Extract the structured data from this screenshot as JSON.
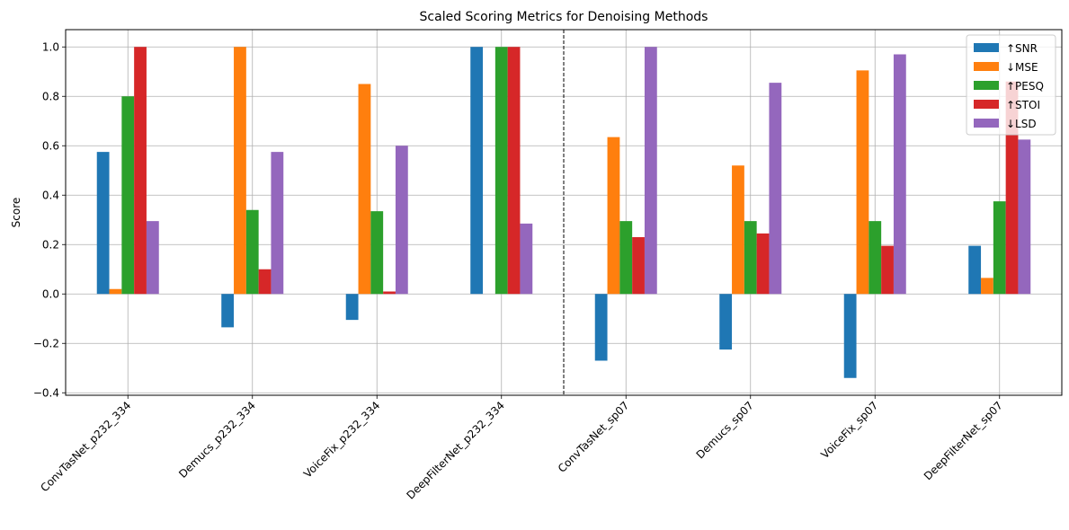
{
  "chart_data": {
    "type": "bar",
    "title": "Scaled Scoring Metrics for Denoising Methods",
    "xlabel": "",
    "ylabel": "Score",
    "ylim": [
      -0.41,
      1.07
    ],
    "yticks": [
      -0.4,
      -0.2,
      0.0,
      0.2,
      0.4,
      0.6,
      0.8,
      1.0
    ],
    "ytick_labels": [
      "−0.4",
      "−0.2",
      "0.0",
      "0.2",
      "0.4",
      "0.6",
      "0.8",
      "1.0"
    ],
    "grid": true,
    "legend_position": "top-right",
    "divider_after_category": 3,
    "categories": [
      "ConvTasNet_p232_334",
      "Demucs_p232_334",
      "VoiceFix_p232_334",
      "DeepFilterNet_p232_334",
      "ConvTasNet_sp07",
      "Demucs_sp07",
      "VoiceFix_sp07",
      "DeepFilterNet_sp07"
    ],
    "series": [
      {
        "name": "↑SNR",
        "color": "#1f77b4",
        "values": [
          0.575,
          -0.135,
          -0.105,
          1.0,
          -0.27,
          -0.225,
          -0.34,
          0.195
        ]
      },
      {
        "name": "↓MSE",
        "color": "#ff7f0e",
        "values": [
          0.02,
          1.0,
          0.85,
          0.0,
          0.635,
          0.52,
          0.905,
          0.065
        ]
      },
      {
        "name": "↑PESQ",
        "color": "#2ca02c",
        "values": [
          0.8,
          0.34,
          0.335,
          1.0,
          0.295,
          0.295,
          0.295,
          0.375
        ]
      },
      {
        "name": "↑STOI",
        "color": "#d62728",
        "values": [
          1.0,
          0.1,
          0.01,
          1.0,
          0.23,
          0.245,
          0.195,
          0.86
        ]
      },
      {
        "name": "↓LSD",
        "color": "#9467bd",
        "values": [
          0.295,
          0.575,
          0.6,
          0.285,
          1.0,
          0.855,
          0.97,
          0.625
        ]
      }
    ]
  }
}
